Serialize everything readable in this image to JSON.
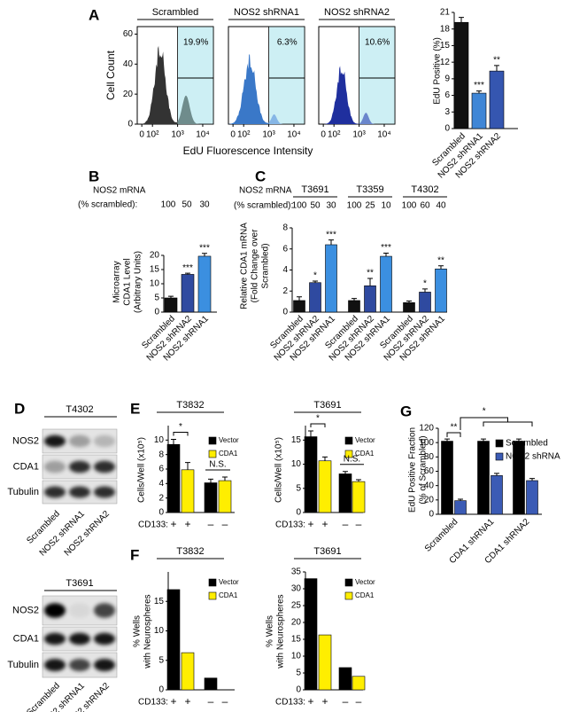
{
  "flow": {
    "panel": "A",
    "ylabel": "Cell Count",
    "xlabel": "EdU Fluorescence Intensity",
    "ylim": [
      0,
      65
    ],
    "yticks": [
      0,
      20,
      40,
      60
    ],
    "xticks": [
      {
        "value": 0,
        "label": "0"
      },
      {
        "value": 100,
        "label": "10²"
      },
      {
        "value": 1000,
        "label": "10³"
      },
      {
        "value": 10000,
        "label": "10⁴"
      }
    ],
    "samples": [
      {
        "name": "Scrambled",
        "gate": "19.9%",
        "color": "#333333",
        "gate_color": "#6f8c8c"
      },
      {
        "name": "NOS2 shRNA1",
        "gate": "6.3%",
        "color": "#3a78c8",
        "gate_color": "#86b6e6"
      },
      {
        "name": "NOS2 shRNA2",
        "gate": "10.6%",
        "color": "#1f2f9e",
        "gate_color": "#6a86cc"
      }
    ]
  },
  "blots": {
    "panel": "D",
    "items": [
      {
        "name": "T4302",
        "rows": [
          "NOS2",
          "CDA1",
          "Tubulin"
        ],
        "lanes": [
          "Scrambled",
          "NOS2 shRNA1",
          "NOS2 shRNA2"
        ]
      },
      {
        "name": "T3691",
        "rows": [
          "NOS2",
          "CDA1",
          "Tubulin"
        ],
        "lanes": [
          "Scrambled",
          "NOS2 shRNA1",
          "NOS2 shRNA2"
        ]
      }
    ]
  },
  "chart_data": [
    {
      "type": "bar",
      "ylabel": [
        "EdU Positive (%)"
      ],
      "categories": [
        "Scrambled",
        "NOS2 shRNA1",
        "NOS2 shRNA2"
      ],
      "values": [
        19.2,
        6.4,
        10.4
      ],
      "errors": [
        0.9,
        0.4,
        1.0
      ],
      "annotations": [
        null,
        "***",
        "**"
      ],
      "colors": [
        "#111111",
        "#3f86d6",
        "#3556b0"
      ],
      "ylim": [
        0,
        21
      ],
      "yticks": [
        0,
        3,
        6,
        9,
        12,
        15,
        18,
        21
      ]
    },
    {
      "type": "bar",
      "panel": "B",
      "mrna_label": [
        "NOS2 mRNA",
        "(% scrambled):"
      ],
      "mrna": [
        100,
        50,
        30
      ],
      "ylabel": [
        "Microarray",
        "CDA1 Level",
        "(Arbitrary Units)"
      ],
      "categories": [
        "Scrambled",
        "NOS2 shRNA2",
        "NOS2 shRNA1"
      ],
      "values": [
        5.0,
        13.3,
        19.7
      ],
      "errors": [
        0.6,
        0.4,
        1.0
      ],
      "annotations": [
        null,
        "***",
        "***"
      ],
      "colors": [
        "#111111",
        "#2f4aa0",
        "#3b8fe0"
      ],
      "ylim": [
        0,
        20
      ],
      "yticks": [
        0,
        5,
        10,
        15,
        20
      ]
    },
    {
      "type": "grouped-bar",
      "panel": "C",
      "mrna_label": [
        "NOS2 mRNA",
        "(% scrambled):"
      ],
      "ylabel": [
        "Relative CDA1 mRNA",
        "(Fold Change over",
        "Scrambled)"
      ],
      "categories": [
        "Scrambled",
        "NOS2 shRNA2",
        "NOS2 shRNA1"
      ],
      "colors": [
        "#111111",
        "#2f4aa0",
        "#3b8fe0"
      ],
      "groups": [
        {
          "name": "T3691",
          "mrna": [
            100,
            50,
            30
          ],
          "values": [
            1.1,
            2.8,
            6.4
          ],
          "errors": [
            0.35,
            0.15,
            0.45
          ],
          "annotations": [
            null,
            "*",
            "***"
          ]
        },
        {
          "name": "T3359",
          "mrna": [
            100,
            25,
            10
          ],
          "values": [
            1.1,
            2.5,
            5.3
          ],
          "errors": [
            0.2,
            0.7,
            0.3
          ],
          "annotations": [
            null,
            "**",
            "***"
          ]
        },
        {
          "name": "T4302",
          "mrna": [
            100,
            60,
            40
          ],
          "values": [
            0.9,
            1.9,
            4.1
          ],
          "errors": [
            0.15,
            0.3,
            0.3
          ],
          "annotations": [
            null,
            "*",
            "**"
          ]
        }
      ],
      "ylim": [
        0,
        8
      ],
      "yticks": [
        0,
        2,
        4,
        6,
        8
      ]
    },
    {
      "type": "series-bar",
      "panel": "E",
      "title": "T3832",
      "ylabel": [
        "Cells/Well (x10⁵)"
      ],
      "x_label": "CD133:",
      "categories": [
        "+",
        "–"
      ],
      "series": [
        {
          "name": "Vector",
          "color": "#000000",
          "values": [
            9.4,
            4.1
          ],
          "errors": [
            0.7,
            0.5
          ]
        },
        {
          "name": "CDA1",
          "color": "#ffee00",
          "values": [
            5.9,
            4.4
          ],
          "errors": [
            1.0,
            0.5
          ]
        }
      ],
      "annotations": [
        "*",
        "N.S."
      ],
      "ylim": [
        0,
        12
      ],
      "yticks": [
        0,
        2,
        4,
        6,
        8,
        10
      ]
    },
    {
      "type": "series-bar",
      "title": "T3691",
      "ylabel": [
        "Cells/Well (x10⁵)"
      ],
      "x_label": "CD133:",
      "categories": [
        "+",
        "–"
      ],
      "series": [
        {
          "name": "Vector",
          "color": "#000000",
          "values": [
            15.7,
            8.0
          ],
          "errors": [
            1.2,
            0.5
          ]
        },
        {
          "name": "CDA1",
          "color": "#ffee00",
          "values": [
            10.7,
            6.4
          ],
          "errors": [
            0.8,
            0.4
          ]
        }
      ],
      "annotations": [
        "*",
        "N.S."
      ],
      "ylim": [
        0,
        18
      ],
      "yticks": [
        0,
        5,
        10,
        15
      ]
    },
    {
      "type": "series-bar",
      "panel": "F",
      "title": "T3832",
      "ylabel": [
        "% Wells",
        "with Neurospheres"
      ],
      "x_label": "CD133:",
      "categories": [
        "+",
        "–"
      ],
      "series": [
        {
          "name": "Vector",
          "color": "#000000",
          "values": [
            17,
            2
          ]
        },
        {
          "name": "CDA1",
          "color": "#ffee00",
          "values": [
            6.3,
            0
          ]
        }
      ],
      "ylim": [
        0,
        20
      ],
      "yticks": [
        0,
        5,
        10,
        15
      ]
    },
    {
      "type": "series-bar",
      "title": "T3691",
      "ylabel": [
        "% Wells",
        "with Neurospheres"
      ],
      "x_label": "CD133:",
      "categories": [
        "+",
        "–"
      ],
      "series": [
        {
          "name": "Vector",
          "color": "#000000",
          "values": [
            33,
            6.6
          ]
        },
        {
          "name": "CDA1",
          "color": "#ffee00",
          "values": [
            16.3,
            4
          ]
        }
      ],
      "ylim": [
        0,
        35
      ],
      "yticks": [
        0,
        5,
        10,
        15,
        20,
        25,
        30,
        35
      ]
    },
    {
      "type": "series-bar",
      "panel": "G",
      "ylabel": [
        "EdU Positive Fraction",
        "(% of Scrambled)"
      ],
      "categories": [
        "Scrambled",
        "CDA1 shRNA1",
        "CDA1 shRNA2"
      ],
      "series": [
        {
          "name": "Scrambled",
          "color": "#000000",
          "values": [
            102,
            102,
            102
          ],
          "errors": [
            3,
            3,
            3
          ]
        },
        {
          "name": "NOS2 shRNA",
          "color": "#3b5bb5",
          "values": [
            19,
            54,
            47
          ],
          "errors": [
            2,
            3,
            3
          ]
        }
      ],
      "comparisons": [
        "**",
        "*"
      ],
      "ylim": [
        0,
        120
      ],
      "yticks": [
        0,
        20,
        40,
        60,
        80,
        100,
        120
      ]
    }
  ]
}
